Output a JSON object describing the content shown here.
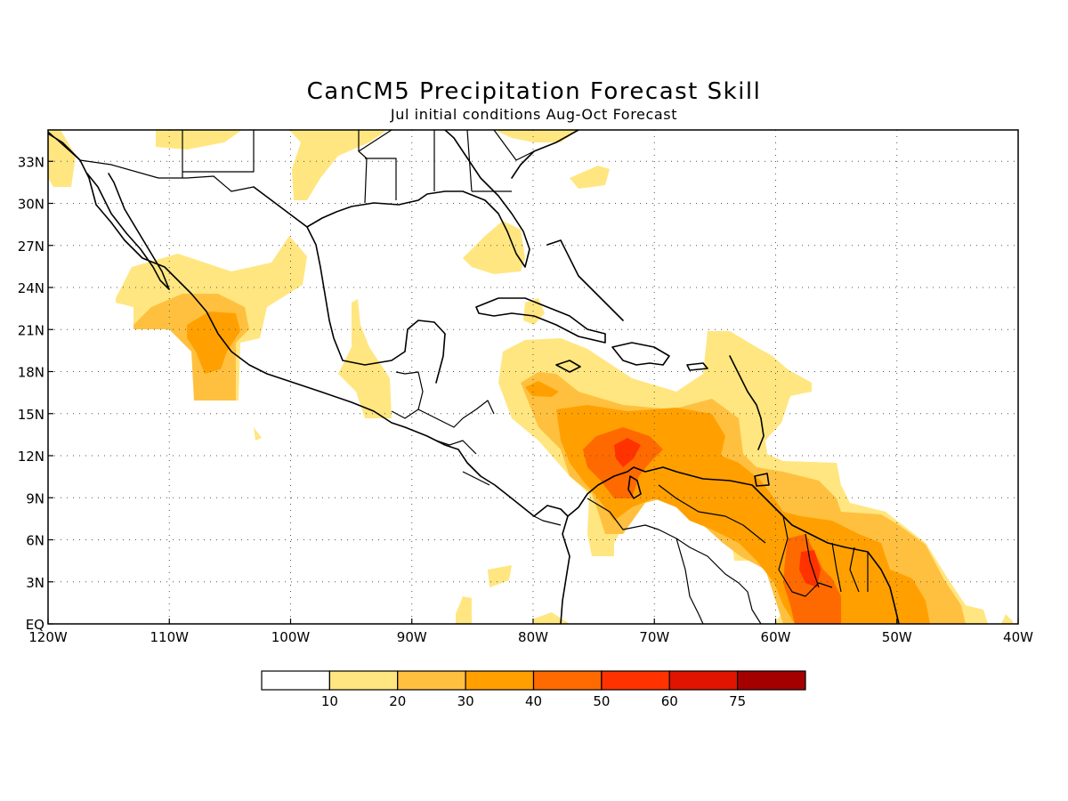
{
  "title": "CanCM5 Precipitation Forecast Skill",
  "subtitle": "Jul initial conditions  Aug-Oct Forecast",
  "colors": {
    "s10": "#ffe680",
    "s20": "#ffc040",
    "s30": "#ffa000",
    "s40": "#ff6a00",
    "s50": "#ff3200",
    "s60": "#e01400",
    "s75": "#a50000"
  },
  "axes": {
    "x_ticks": [
      "120W",
      "110W",
      "100W",
      "90W",
      "80W",
      "70W",
      "60W",
      "50W",
      "40W"
    ],
    "y_ticks": [
      "EQ",
      "3N",
      "6N",
      "9N",
      "12N",
      "15N",
      "18N",
      "21N",
      "24N",
      "27N",
      "30N",
      "33N"
    ]
  },
  "colorbar": {
    "labels": [
      "10",
      "20",
      "30",
      "40",
      "50",
      "60",
      "75"
    ],
    "colors": [
      "#ffffff",
      "#ffe680",
      "#ffc040",
      "#ffa000",
      "#ff6a00",
      "#ff3200",
      "#e01400",
      "#a50000"
    ]
  }
}
